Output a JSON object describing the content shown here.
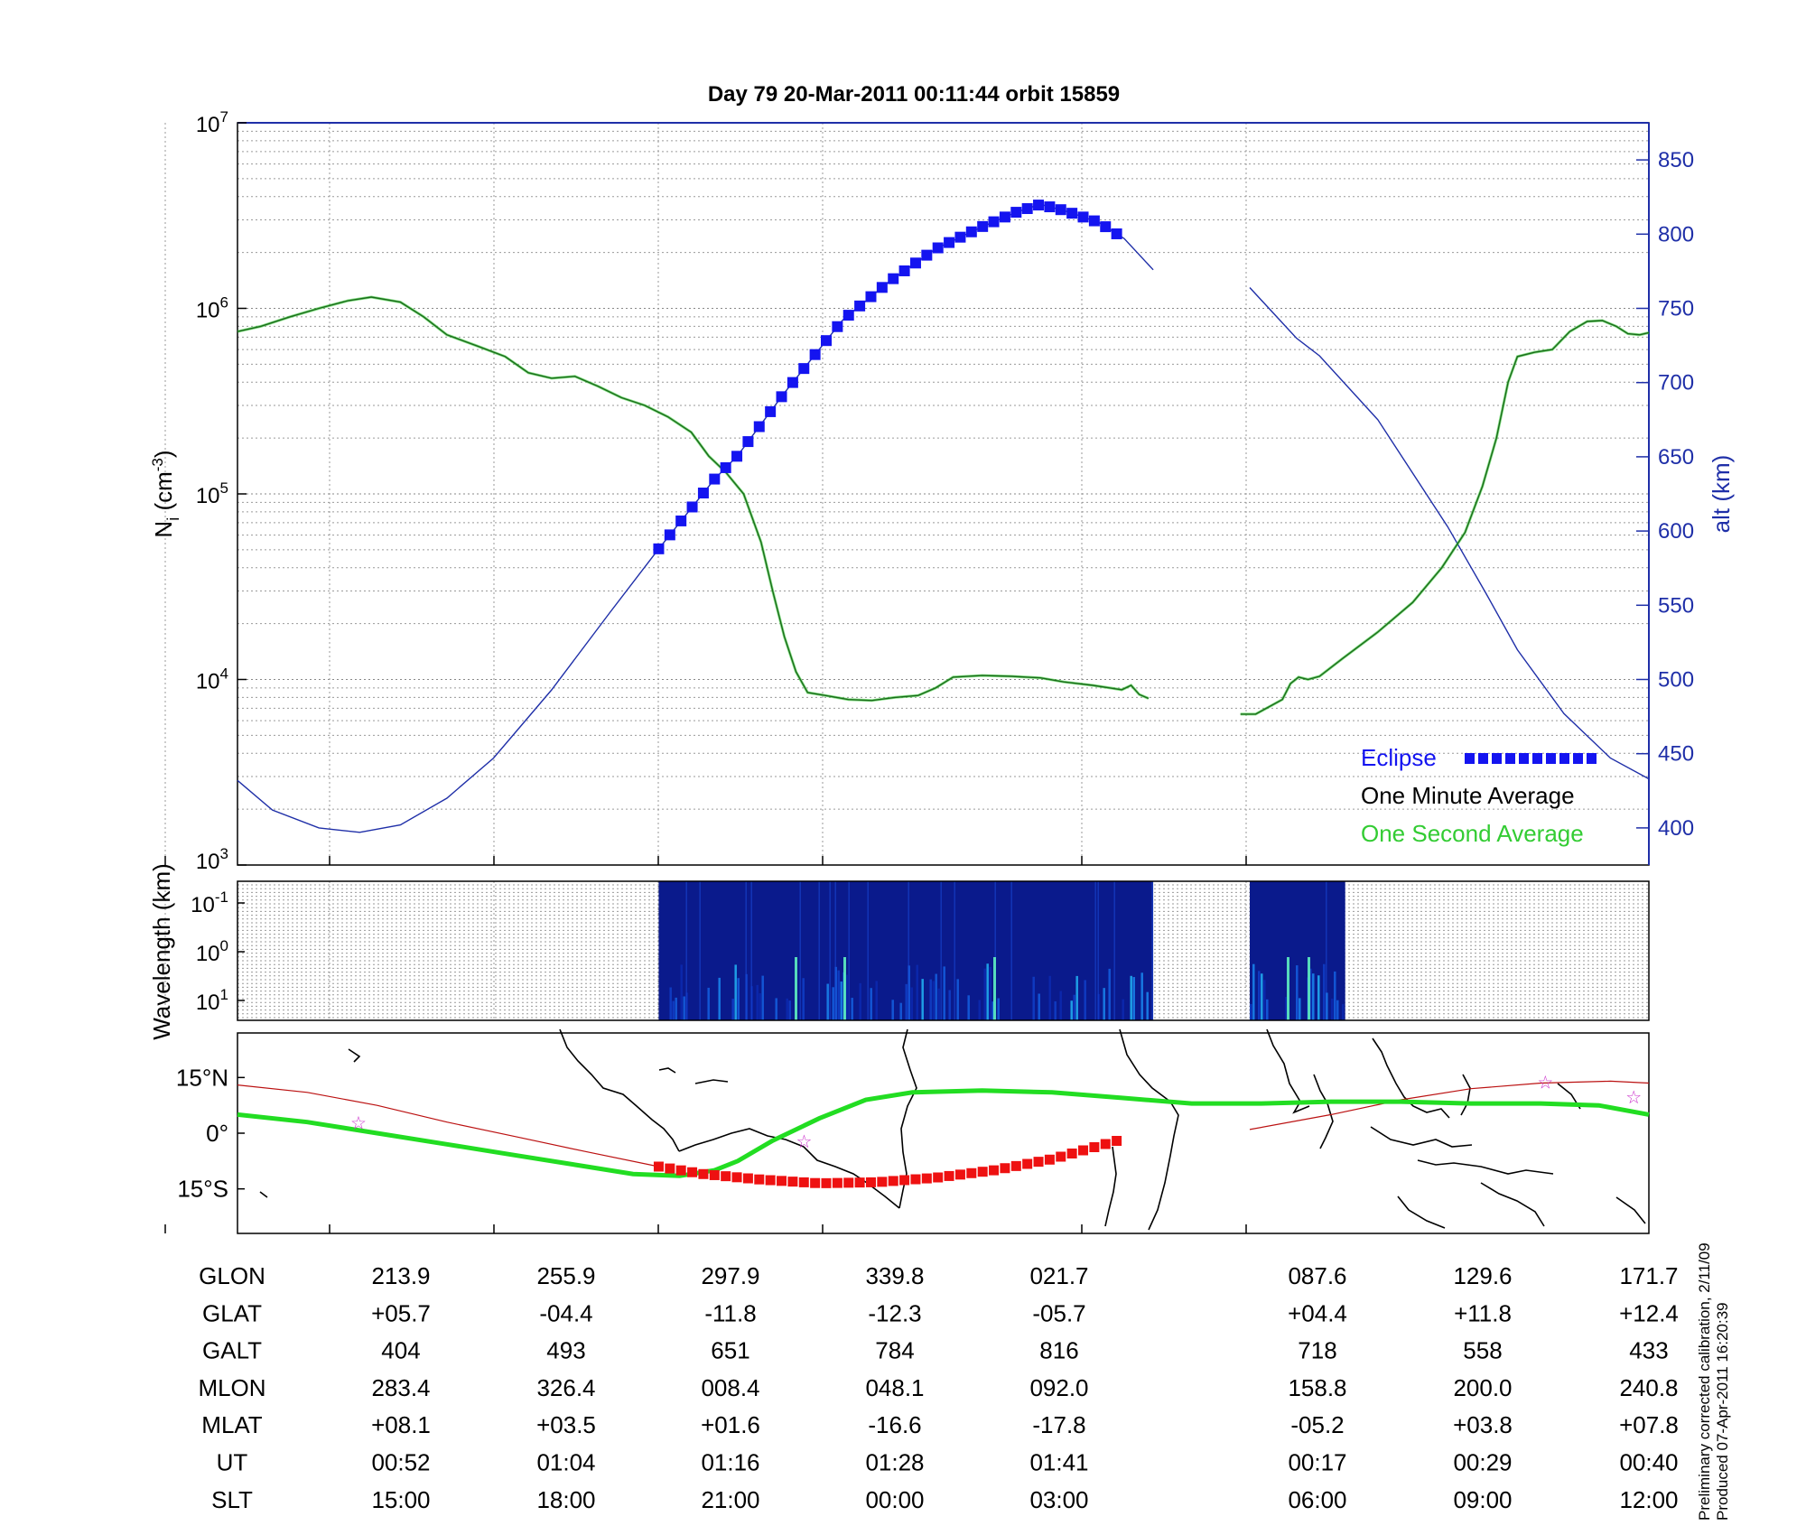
{
  "title": "Day 79  20-Mar-2011 00:11:44   orbit 15859",
  "side_note": [
    "Preliminary corrected calibration, 2/11/09",
    "Produced 07-Apr-2011 16:20:39"
  ],
  "colors": {
    "density": "#1a6b1a",
    "density_fast": "#33cc33",
    "altitude": "#1f2fa8",
    "eclipse": "#1414f0",
    "track_fast": "#22dd22",
    "track_orbit": "#bb1111",
    "track_eclipse": "#ee1111",
    "star": "#cc33cc",
    "spectrogram_bg": "#0a1a8c"
  },
  "chart_data": [
    {
      "type": "line",
      "name": "density-altitude",
      "ylabel": "N",
      "ylabel_sub": "i",
      "ylabel_unit": "(cm",
      "ylabel_sup": "-3",
      "ylabel_close": ")",
      "y_scale": "log",
      "ylim": [
        1000,
        10000000
      ],
      "y_ticks": [
        {
          "base": "10",
          "exp": "3"
        },
        {
          "base": "10",
          "exp": "4"
        },
        {
          "base": "10",
          "exp": "5"
        },
        {
          "base": "10",
          "exp": "6"
        },
        {
          "base": "10",
          "exp": "7"
        }
      ],
      "y2label": "alt (km)",
      "y2lim": [
        375,
        875
      ],
      "y2_ticks": [
        "400",
        "450",
        "500",
        "550",
        "600",
        "650",
        "700",
        "750",
        "800",
        "850"
      ],
      "grid": true,
      "legend": {
        "position": "bottom-right",
        "items": [
          {
            "label": "Eclipse",
            "style": "eclipse"
          },
          {
            "label": "One Minute Average",
            "style": "minute"
          },
          {
            "label": "One Second Average",
            "style": "second"
          }
        ]
      },
      "series": [
        {
          "name": "One Minute Average",
          "segments": [
            [
              [
                0,
                750000
              ],
              [
                20,
                800000
              ],
              [
                45,
                900000
              ],
              [
                70,
                1000000
              ],
              [
                95,
                1100000
              ],
              [
                115,
                1150000
              ],
              [
                140,
                1080000
              ],
              [
                160,
                900000
              ],
              [
                180,
                720000
              ],
              [
                205,
                630000
              ],
              [
                230,
                550000
              ],
              [
                250,
                450000
              ],
              [
                270,
                420000
              ],
              [
                290,
                430000
              ],
              [
                310,
                380000
              ],
              [
                330,
                330000
              ],
              [
                350,
                300000
              ],
              [
                370,
                260000
              ],
              [
                390,
                215000
              ],
              [
                405,
                160000
              ],
              [
                420,
                130000
              ],
              [
                435,
                100000
              ],
              [
                450,
                55000
              ],
              [
                460,
                30000
              ],
              [
                470,
                17000
              ],
              [
                480,
                11000
              ],
              [
                490,
                8500
              ],
              [
                505,
                8200
              ],
              [
                525,
                7800
              ],
              [
                545,
                7700
              ],
              [
                565,
                8000
              ],
              [
                585,
                8200
              ],
              [
                600,
                9000
              ],
              [
                615,
                10300
              ],
              [
                640,
                10500
              ],
              [
                665,
                10400
              ],
              [
                690,
                10200
              ],
              [
                710,
                9700
              ],
              [
                735,
                9300
              ],
              [
                750,
                9000
              ],
              [
                760,
                8800
              ],
              [
                768,
                9300
              ],
              [
                775,
                8300
              ],
              [
                783,
                7900
              ]
            ],
            [
              [
                862,
                6500
              ],
              [
                875,
                6500
              ],
              [
                888,
                7200
              ],
              [
                898,
                7800
              ],
              [
                905,
                9500
              ],
              [
                912,
                10300
              ],
              [
                920,
                10000
              ],
              [
                930,
                10400
              ],
              [
                950,
                13000
              ],
              [
                980,
                18000
              ],
              [
                1010,
                26000
              ],
              [
                1035,
                40000
              ],
              [
                1055,
                62000
              ],
              [
                1070,
                110000
              ],
              [
                1082,
                200000
              ],
              [
                1092,
                400000
              ],
              [
                1100,
                550000
              ],
              [
                1115,
                580000
              ],
              [
                1130,
                600000
              ],
              [
                1145,
                750000
              ],
              [
                1160,
                850000
              ],
              [
                1173,
                860000
              ],
              [
                1185,
                800000
              ],
              [
                1195,
                730000
              ],
              [
                1205,
                720000
              ],
              [
                1213,
                740000
              ]
            ]
          ]
        },
        {
          "name": "altitude",
          "axis": "y2",
          "segments": [
            [
              [
                0,
                432
              ],
              [
                30,
                412
              ],
              [
                70,
                400
              ],
              [
                105,
                397
              ],
              [
                140,
                402
              ],
              [
                180,
                420
              ],
              [
                220,
                447
              ],
              [
                270,
                493
              ],
              [
                320,
                545
              ],
              [
                362,
                588
              ],
              [
                410,
                635
              ],
              [
                430,
                651
              ],
              [
                470,
                693
              ],
              [
                520,
                742
              ],
              [
                560,
                768
              ],
              [
                600,
                790
              ],
              [
                640,
                805
              ],
              [
                670,
                815
              ],
              [
                690,
                820
              ],
              [
                710,
                816
              ],
              [
                740,
                808
              ],
              [
                762,
                797
              ],
              [
                787,
                776
              ]
            ],
            [
              [
                870,
                764
              ],
              [
                910,
                730
              ],
              [
                930,
                718
              ],
              [
                980,
                675
              ],
              [
                1040,
                603
              ],
              [
                1073,
                558
              ],
              [
                1100,
                520
              ],
              [
                1140,
                477
              ],
              [
                1180,
                447
              ],
              [
                1213,
                433
              ]
            ]
          ]
        },
        {
          "name": "Eclipse",
          "axis": "y2",
          "start": 362,
          "end": 762
        }
      ]
    },
    {
      "type": "heatmap",
      "name": "spectrogram",
      "ylabel": "Wavelength (km)",
      "y_scale": "log",
      "y_ticks": [
        {
          "base": "10",
          "exp": "-1"
        },
        {
          "base": "10",
          "exp": "0"
        },
        {
          "base": "10",
          "exp": "1"
        }
      ],
      "blocks": [
        [
          362,
          787
        ],
        [
          870,
          952
        ]
      ]
    },
    {
      "type": "line",
      "name": "ground-track",
      "ylim": [
        -27,
        27
      ],
      "y_ticks": [
        {
          "value": 15,
          "label": "15°N"
        },
        {
          "value": 0,
          "label": "0°"
        },
        {
          "value": -15,
          "label": "15°S"
        }
      ],
      "series": [
        {
          "name": "track_fast",
          "points": [
            [
              0,
              5
            ],
            [
              60,
              3
            ],
            [
              120,
              0
            ],
            [
              180,
              -3
            ],
            [
              240,
              -6
            ],
            [
              300,
              -9
            ],
            [
              340,
              -11
            ],
            [
              380,
              -11.5
            ],
            [
              410,
              -10
            ],
            [
              430,
              -7.5
            ],
            [
              460,
              -2
            ],
            [
              500,
              4
            ],
            [
              540,
              9
            ],
            [
              580,
              11
            ],
            [
              640,
              11.5
            ],
            [
              700,
              11
            ],
            [
              760,
              9.5
            ],
            [
              820,
              8
            ],
            [
              880,
              8
            ],
            [
              940,
              8.5
            ],
            [
              1000,
              8.5
            ],
            [
              1060,
              8
            ],
            [
              1120,
              8
            ],
            [
              1170,
              7.5
            ],
            [
              1213,
              5
            ]
          ]
        },
        {
          "name": "track_orbit",
          "segments": [
            [
              [
                0,
                13
              ],
              [
                60,
                11
              ],
              [
                120,
                7.5
              ],
              [
                180,
                3
              ],
              [
                240,
                -1
              ],
              [
                300,
                -5
              ],
              [
                362,
                -9
              ]
            ],
            [
              [
                870,
                1
              ],
              [
                940,
                5
              ],
              [
                1000,
                9
              ],
              [
                1060,
                12
              ],
              [
                1120,
                13.5
              ],
              [
                1180,
                14
              ],
              [
                1213,
                13.5
              ]
            ]
          ]
        },
        {
          "name": "track_eclipse",
          "start": 362,
          "end": 762
        },
        {
          "name": "stars",
          "points": [
            [
              104,
              3
            ],
            [
              487,
              -2
            ],
            [
              1124,
              14
            ],
            [
              1200,
              10
            ]
          ]
        }
      ]
    }
  ],
  "table": {
    "rows": [
      {
        "label": "GLON",
        "values": [
          "213.9",
          "255.9",
          "297.9",
          "339.8",
          "021.7",
          "087.6",
          "129.6",
          "171.7"
        ]
      },
      {
        "label": "GLAT",
        "values": [
          "+05.7",
          "-04.4",
          "-11.8",
          "-12.3",
          "-05.7",
          "+04.4",
          "+11.8",
          "+12.4"
        ]
      },
      {
        "label": "GALT",
        "values": [
          "404",
          "493",
          "651",
          "784",
          "816",
          "718",
          "558",
          "433"
        ]
      },
      {
        "label": "MLON",
        "values": [
          "283.4",
          "326.4",
          "008.4",
          "048.1",
          "092.0",
          "158.8",
          "200.0",
          "240.8"
        ]
      },
      {
        "label": "MLAT",
        "values": [
          "+08.1",
          "+03.5",
          "+01.6",
          "-16.6",
          "-17.8",
          "-05.2",
          "+03.8",
          "+07.8"
        ]
      },
      {
        "label": "UT",
        "values": [
          "00:52",
          "01:04",
          "01:16",
          "01:28",
          "01:41",
          "00:17",
          "00:29",
          "00:40"
        ]
      },
      {
        "label": "SLT",
        "values": [
          "15:00",
          "18:00",
          "21:00",
          "00:00",
          "03:00",
          "06:00",
          "09:00",
          "12:00"
        ]
      }
    ]
  }
}
